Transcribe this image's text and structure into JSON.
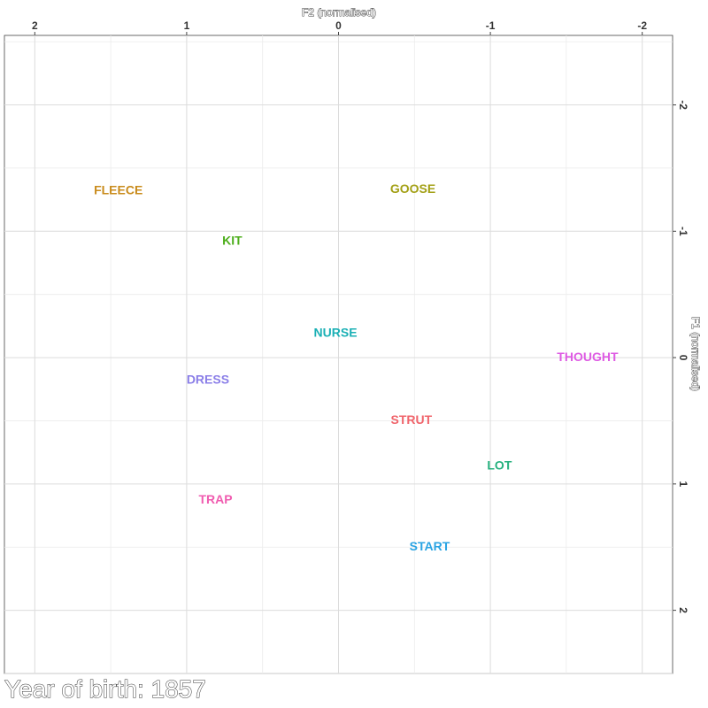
{
  "chart_data": {
    "type": "scatter",
    "xlabel": "F2 (normalised)",
    "ylabel": "F1 (normalised)",
    "x_reversed": true,
    "y_reversed": true,
    "xlim": [
      2.2,
      -2.2
    ],
    "ylim": [
      -2.55,
      2.5
    ],
    "x_ticks": [
      2,
      1,
      0,
      -1,
      -2
    ],
    "x_tick_labels": [
      "2",
      "1",
      "0",
      "-1",
      "-2"
    ],
    "y_ticks": [
      -2,
      -1,
      0,
      1,
      2
    ],
    "y_tick_labels": [
      "-2",
      "-1",
      "0",
      "1",
      "2"
    ],
    "x_axis_position": "top",
    "y_axis_position": "right",
    "grid": true,
    "points": [
      {
        "label": "FLEECE",
        "x": 1.45,
        "y": -1.32,
        "color": "#C98B1B"
      },
      {
        "label": "GOOSE",
        "x": -0.49,
        "y": -1.33,
        "color": "#A3A016"
      },
      {
        "label": "KIT",
        "x": 0.7,
        "y": -0.92,
        "color": "#4DAE1C"
      },
      {
        "label": "NURSE",
        "x": 0.02,
        "y": -0.19,
        "color": "#1BB0B5"
      },
      {
        "label": "THOUGHT",
        "x": -1.64,
        "y": 0.0,
        "color": "#DE5BE3"
      },
      {
        "label": "DRESS",
        "x": 0.86,
        "y": 0.18,
        "color": "#8B7FE8"
      },
      {
        "label": "STRUT",
        "x": -0.48,
        "y": 0.5,
        "color": "#F0646B"
      },
      {
        "label": "LOT",
        "x": -1.06,
        "y": 0.86,
        "color": "#25B07E"
      },
      {
        "label": "TRAP",
        "x": 0.81,
        "y": 1.13,
        "color": "#F05CB0"
      },
      {
        "label": "START",
        "x": -0.6,
        "y": 1.5,
        "color": "#2AA4E3"
      }
    ]
  },
  "caption": "Year of birth: 1857"
}
